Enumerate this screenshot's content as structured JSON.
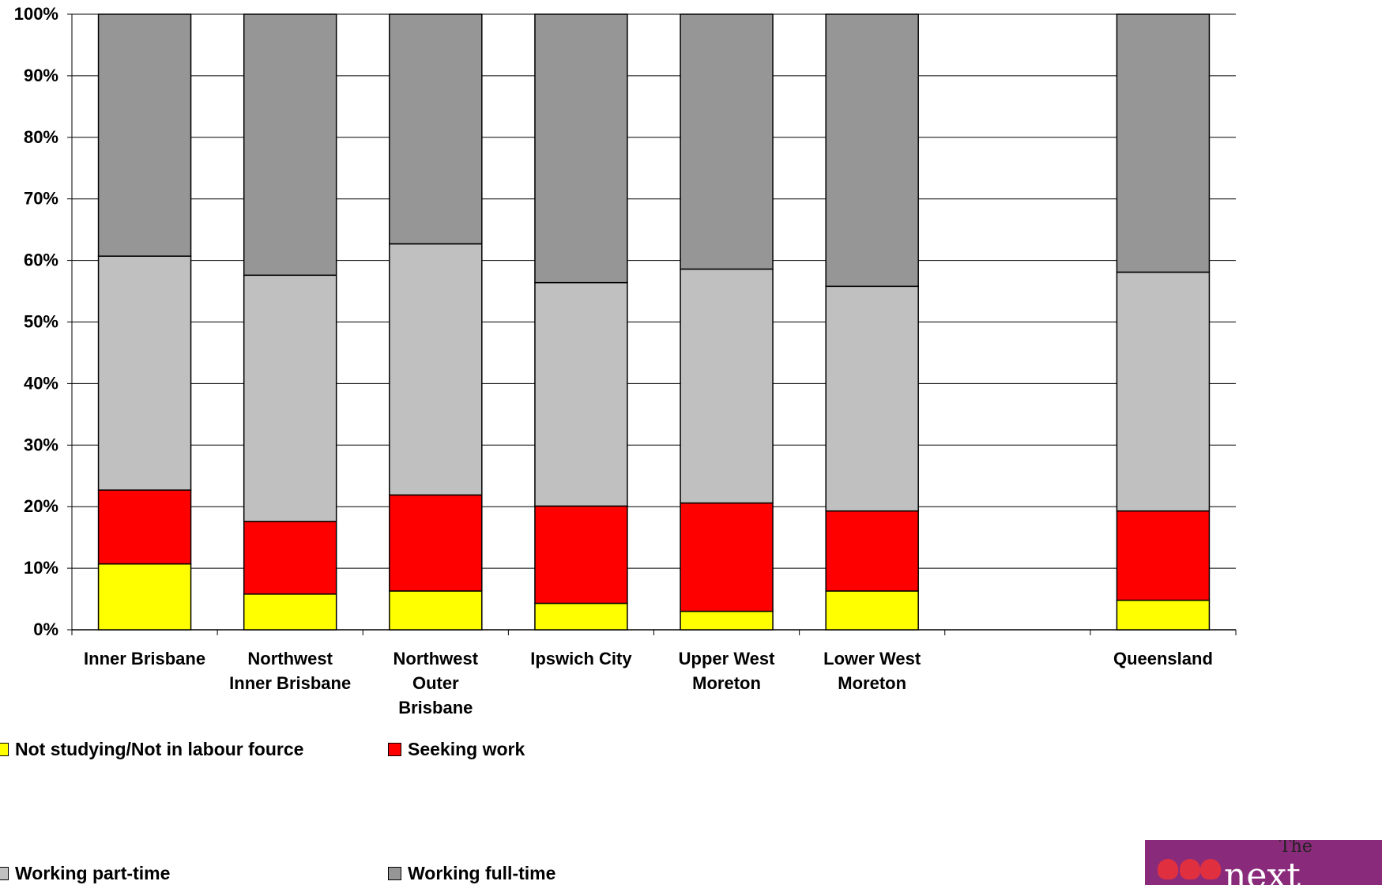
{
  "chart_data": {
    "type": "bar",
    "stacked": true,
    "categories": [
      "Inner Brisbane",
      "Northwest Inner Brisbane",
      "Northwest Outer Brisbane",
      "Ipswich City",
      "Upper West Moreton",
      "Lower West Moreton",
      "",
      "Queensland"
    ],
    "category_lines": [
      [
        "Inner Brisbane"
      ],
      [
        "Northwest",
        "Inner Brisbane"
      ],
      [
        "Northwest",
        "Outer",
        "Brisbane"
      ],
      [
        "Ipswich City"
      ],
      [
        "Upper West",
        "Moreton"
      ],
      [
        "Lower West",
        "Moreton"
      ],
      [],
      [
        "Queensland"
      ]
    ],
    "series": [
      {
        "name": "Not studying/Not in labour fource",
        "color": "#ffff00",
        "values": [
          10.7,
          5.8,
          6.3,
          4.3,
          3.0,
          6.3,
          null,
          4.8
        ]
      },
      {
        "name": "Seeking work",
        "color": "#ff0000",
        "values": [
          12.0,
          11.8,
          15.6,
          15.8,
          17.6,
          13.0,
          null,
          14.5
        ]
      },
      {
        "name": "Working part-time",
        "color": "#c0c0c0",
        "values": [
          38.0,
          40.0,
          40.8,
          36.3,
          38.0,
          36.5,
          null,
          38.8
        ]
      },
      {
        "name": "Working full-time",
        "color": "#969696",
        "values": [
          39.3,
          42.4,
          37.3,
          43.6,
          41.4,
          44.2,
          null,
          41.9
        ]
      }
    ],
    "yticks": [
      "0%",
      "10%",
      "20%",
      "30%",
      "40%",
      "50%",
      "60%",
      "70%",
      "80%",
      "90%",
      "100%"
    ],
    "ylim": [
      0,
      100
    ],
    "grid": true,
    "legend_position": "bottom-left"
  }
}
